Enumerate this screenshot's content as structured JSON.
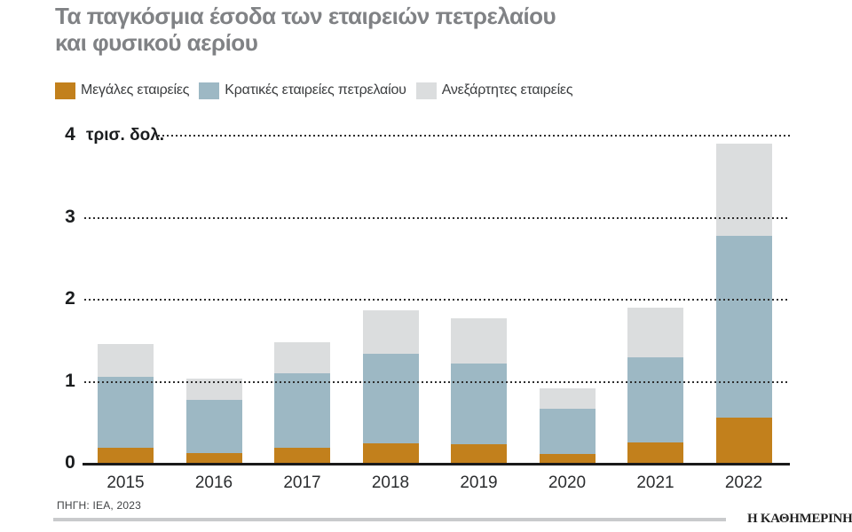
{
  "title": {
    "line1": "Τα παγκόσμια έσοδα των εταιρειών πετρελαίου",
    "line2": "και φυσικού αερίου"
  },
  "source": "ΠΗΓΗ: ΙΕΑ, 2023",
  "branding": "Η ΚΑΘΗΜΕΡΙΝΗ",
  "colors": {
    "majors": "#C2801C",
    "state_oil": "#9DB8C4",
    "independents": "#DBDDDE",
    "title_text": "#808285",
    "grid_dots": "#2E2E2E",
    "axis": "#1A1A1A"
  },
  "chart_data": {
    "type": "bar",
    "stacked": true,
    "title": "Τα παγκόσμια έσοδα των εταιρειών πετρελαίου και φυσικού αερίου",
    "unit_label": "τρισ. δολ.",
    "categories": [
      "2015",
      "2016",
      "2017",
      "2018",
      "2019",
      "2020",
      "2021",
      "2022"
    ],
    "series": [
      {
        "name": "Μεγάλες εταιρείες",
        "color": "#C2801C",
        "values": [
          0.19,
          0.13,
          0.2,
          0.25,
          0.24,
          0.12,
          0.26,
          0.56
        ]
      },
      {
        "name": "Κρατικές εταιρείες πετρελαίου",
        "color": "#9DB8C4",
        "values": [
          0.87,
          0.65,
          0.9,
          1.09,
          0.98,
          0.55,
          1.04,
          2.22
        ]
      },
      {
        "name": "Ανεξάρτητες εταιρείες",
        "color": "#DBDDDE",
        "values": [
          0.4,
          0.26,
          0.38,
          0.53,
          0.56,
          0.25,
          0.61,
          1.13
        ]
      }
    ],
    "totals": [
      1.46,
      1.04,
      1.48,
      1.87,
      1.78,
      0.92,
      1.91,
      3.91
    ],
    "yticks": [
      0,
      1,
      2,
      3,
      4
    ],
    "ylim": [
      0,
      4
    ],
    "grid": "dotted-horizontal",
    "legend_position": "top-left"
  }
}
